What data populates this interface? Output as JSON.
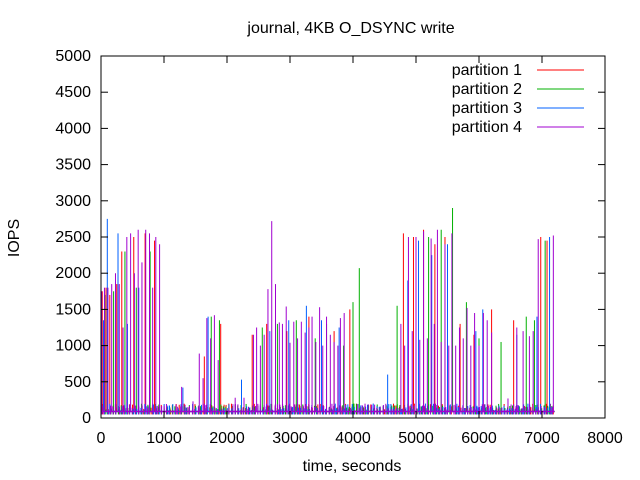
{
  "chart_data": {
    "type": "line",
    "title": "journal, 4KB O_DSYNC write",
    "xlabel": "time, seconds",
    "ylabel": "IOPS",
    "xlim": [
      0,
      8000
    ],
    "ylim": [
      0,
      5000
    ],
    "xticks": [
      0,
      1000,
      2000,
      3000,
      4000,
      5000,
      6000,
      7000,
      8000
    ],
    "yticks": [
      0,
      500,
      1000,
      1500,
      2000,
      2500,
      3000,
      3500,
      4000,
      4500,
      5000
    ],
    "grid": false,
    "legend_position": "top-right",
    "baseline_iops": 90,
    "series": [
      {
        "name": "partition 1",
        "color": "#ff0000",
        "spikes": [
          [
            20,
            1750
          ],
          [
            80,
            1800
          ],
          [
            140,
            1700
          ],
          [
            250,
            1850
          ],
          [
            330,
            2300
          ],
          [
            520,
            2500
          ],
          [
            700,
            2550
          ],
          [
            850,
            2450
          ],
          [
            1640,
            850
          ],
          [
            1900,
            1300
          ],
          [
            2400,
            1150
          ],
          [
            2630,
            1300
          ],
          [
            2950,
            1200
          ],
          [
            3300,
            1400
          ],
          [
            3700,
            1200
          ],
          [
            3950,
            1500
          ],
          [
            4800,
            2550
          ],
          [
            4960,
            2500
          ],
          [
            5120,
            2600
          ],
          [
            5300,
            2400
          ],
          [
            5460,
            2500
          ],
          [
            5700,
            1300
          ],
          [
            5920,
            1150
          ],
          [
            6200,
            1500
          ],
          [
            6550,
            1350
          ],
          [
            6980,
            2500
          ],
          [
            7080,
            2450
          ]
        ]
      },
      {
        "name": "partition 2",
        "color": "#00b000",
        "spikes": [
          [
            60,
            1700
          ],
          [
            200,
            1750
          ],
          [
            380,
            2300
          ],
          [
            560,
            1800
          ],
          [
            780,
            2300
          ],
          [
            1750,
            1400
          ],
          [
            1880,
            1350
          ],
          [
            2560,
            1250
          ],
          [
            2800,
            1300
          ],
          [
            3100,
            1350
          ],
          [
            3400,
            1100
          ],
          [
            3580,
            1300
          ],
          [
            3850,
            1000
          ],
          [
            4000,
            1600
          ],
          [
            4100,
            2070
          ],
          [
            4700,
            1550
          ],
          [
            5000,
            1450
          ],
          [
            5200,
            2500
          ],
          [
            5400,
            2600
          ],
          [
            5580,
            2900
          ],
          [
            5800,
            1600
          ],
          [
            6000,
            1100
          ],
          [
            6350,
            1050
          ],
          [
            6750,
            1400
          ],
          [
            6880,
            1350
          ],
          [
            7050,
            2450
          ]
        ]
      },
      {
        "name": "partition 3",
        "color": "#0060ff",
        "spikes": [
          [
            40,
            1350
          ],
          [
            100,
            2750
          ],
          [
            270,
            2550
          ],
          [
            420,
            1300
          ],
          [
            600,
            1800
          ],
          [
            1300,
            420
          ],
          [
            1700,
            1400
          ],
          [
            2230,
            530
          ],
          [
            2680,
            1200
          ],
          [
            2980,
            1350
          ],
          [
            3260,
            1550
          ],
          [
            3500,
            1350
          ],
          [
            3780,
            1250
          ],
          [
            4550,
            600
          ],
          [
            4870,
            1900
          ],
          [
            5040,
            2450
          ],
          [
            5250,
            2250
          ],
          [
            5500,
            2400
          ],
          [
            5950,
            1200
          ],
          [
            6060,
            1500
          ],
          [
            6600,
            1150
          ],
          [
            6920,
            1400
          ],
          [
            7120,
            2500
          ]
        ]
      },
      {
        "name": "partition 4",
        "color": "#a000d0",
        "spikes": [
          [
            10,
            1750
          ],
          [
            55,
            1800
          ],
          [
            110,
            1800
          ],
          [
            170,
            1850
          ],
          [
            230,
            2000
          ],
          [
            290,
            1850
          ],
          [
            350,
            1250
          ],
          [
            410,
            2500
          ],
          [
            470,
            2550
          ],
          [
            530,
            2000
          ],
          [
            590,
            2600
          ],
          [
            650,
            2150
          ],
          [
            710,
            2600
          ],
          [
            770,
            2550
          ],
          [
            820,
            1800
          ],
          [
            870,
            2500
          ],
          [
            930,
            2400
          ],
          [
            1280,
            430
          ],
          [
            1460,
            230
          ],
          [
            1560,
            890
          ],
          [
            1620,
            550
          ],
          [
            1680,
            1380
          ],
          [
            1740,
            1100
          ],
          [
            1800,
            1420
          ],
          [
            1860,
            800
          ],
          [
            2130,
            280
          ],
          [
            2270,
            280
          ],
          [
            2420,
            1150
          ],
          [
            2470,
            1250
          ],
          [
            2530,
            1000
          ],
          [
            2590,
            1150
          ],
          [
            2650,
            1780
          ],
          [
            2710,
            2720
          ],
          [
            2770,
            1850
          ],
          [
            2830,
            1320
          ],
          [
            2880,
            1300
          ],
          [
            2940,
            1540
          ],
          [
            3000,
            1040
          ],
          [
            3060,
            1330
          ],
          [
            3120,
            1100
          ],
          [
            3180,
            1330
          ],
          [
            3240,
            1180
          ],
          [
            3300,
            1250
          ],
          [
            3350,
            1400
          ],
          [
            3410,
            1050
          ],
          [
            3470,
            1530
          ],
          [
            3520,
            1000
          ],
          [
            3580,
            1400
          ],
          [
            3640,
            1150
          ],
          [
            3700,
            1050
          ],
          [
            3760,
            1000
          ],
          [
            3800,
            1380
          ],
          [
            3860,
            1450
          ],
          [
            4760,
            1300
          ],
          [
            4820,
            1000
          ],
          [
            4880,
            2500
          ],
          [
            4940,
            1200
          ],
          [
            5000,
            2500
          ],
          [
            5060,
            1080
          ],
          [
            5120,
            2580
          ],
          [
            5180,
            1100
          ],
          [
            5240,
            2480
          ],
          [
            5290,
            1300
          ],
          [
            5340,
            2600
          ],
          [
            5400,
            1050
          ],
          [
            5460,
            2400
          ],
          [
            5520,
            1000
          ],
          [
            5570,
            2550
          ],
          [
            5630,
            1000
          ],
          [
            5690,
            1250
          ],
          [
            5750,
            1100
          ],
          [
            5810,
            1520
          ],
          [
            5870,
            1000
          ],
          [
            5930,
            1450
          ],
          [
            6000,
            1000
          ],
          [
            6070,
            1450
          ],
          [
            6130,
            1350
          ],
          [
            6200,
            1180
          ],
          [
            6460,
            270
          ],
          [
            6600,
            1250
          ],
          [
            6700,
            1200
          ],
          [
            6800,
            1130
          ],
          [
            6860,
            1200
          ],
          [
            6940,
            2470
          ],
          [
            7180,
            2520
          ]
        ]
      }
    ]
  }
}
